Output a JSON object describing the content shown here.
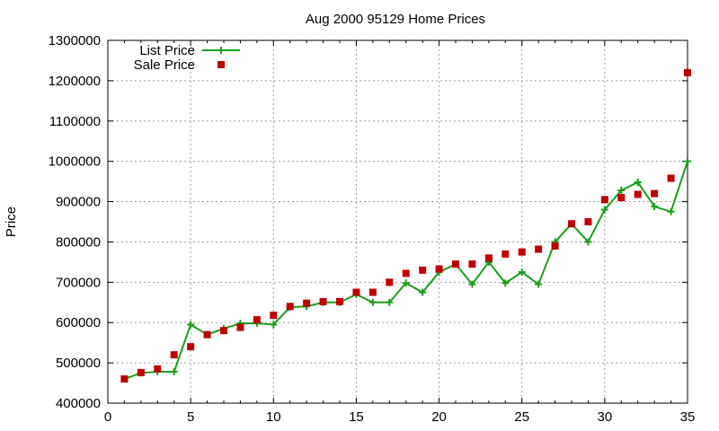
{
  "chart_data": {
    "type": "line",
    "title": "Aug 2000 95129 Home Prices",
    "xlabel": "",
    "ylabel": "Price",
    "xlim": [
      0,
      35
    ],
    "ylim": [
      400000,
      1300000
    ],
    "x_ticks": [
      0,
      5,
      10,
      15,
      20,
      25,
      30,
      35
    ],
    "y_ticks": [
      400000,
      500000,
      600000,
      700000,
      800000,
      900000,
      1000000,
      1100000,
      1200000,
      1300000
    ],
    "grid": true,
    "legend_position": "top-left",
    "colors": {
      "list": "#1a9e1a",
      "sale": "#c00000"
    },
    "series": [
      {
        "name": "List Price",
        "style": "line-plus",
        "x": [
          1,
          2,
          3,
          4,
          5,
          6,
          7,
          8,
          9,
          10,
          11,
          12,
          13,
          14,
          15,
          16,
          17,
          18,
          19,
          20,
          21,
          22,
          23,
          24,
          25,
          26,
          27,
          28,
          29,
          30,
          31,
          32,
          33,
          34,
          35
        ],
        "values": [
          460000,
          475000,
          478000,
          478000,
          595000,
          570000,
          585000,
          598000,
          598000,
          595000,
          638000,
          640000,
          650000,
          650000,
          670000,
          650000,
          650000,
          698000,
          675000,
          725000,
          745000,
          695000,
          750000,
          698000,
          725000,
          695000,
          800000,
          845000,
          800000,
          880000,
          928000,
          948000,
          888000,
          875000,
          1000000
        ]
      },
      {
        "name": "Sale Price",
        "style": "square-points",
        "x": [
          1,
          2,
          3,
          4,
          5,
          6,
          7,
          8,
          9,
          10,
          11,
          12,
          13,
          14,
          15,
          16,
          17,
          18,
          19,
          20,
          21,
          22,
          23,
          24,
          25,
          26,
          27,
          28,
          29,
          30,
          31,
          32,
          33,
          34,
          35
        ],
        "values": [
          460000,
          476000,
          485000,
          520000,
          540000,
          570000,
          580000,
          588000,
          607000,
          618000,
          640000,
          648000,
          652000,
          652000,
          675000,
          675000,
          700000,
          722000,
          730000,
          733000,
          745000,
          745000,
          760000,
          770000,
          775000,
          782000,
          790000,
          845000,
          850000,
          905000,
          910000,
          918000,
          920000,
          958000,
          1220000
        ]
      }
    ]
  }
}
